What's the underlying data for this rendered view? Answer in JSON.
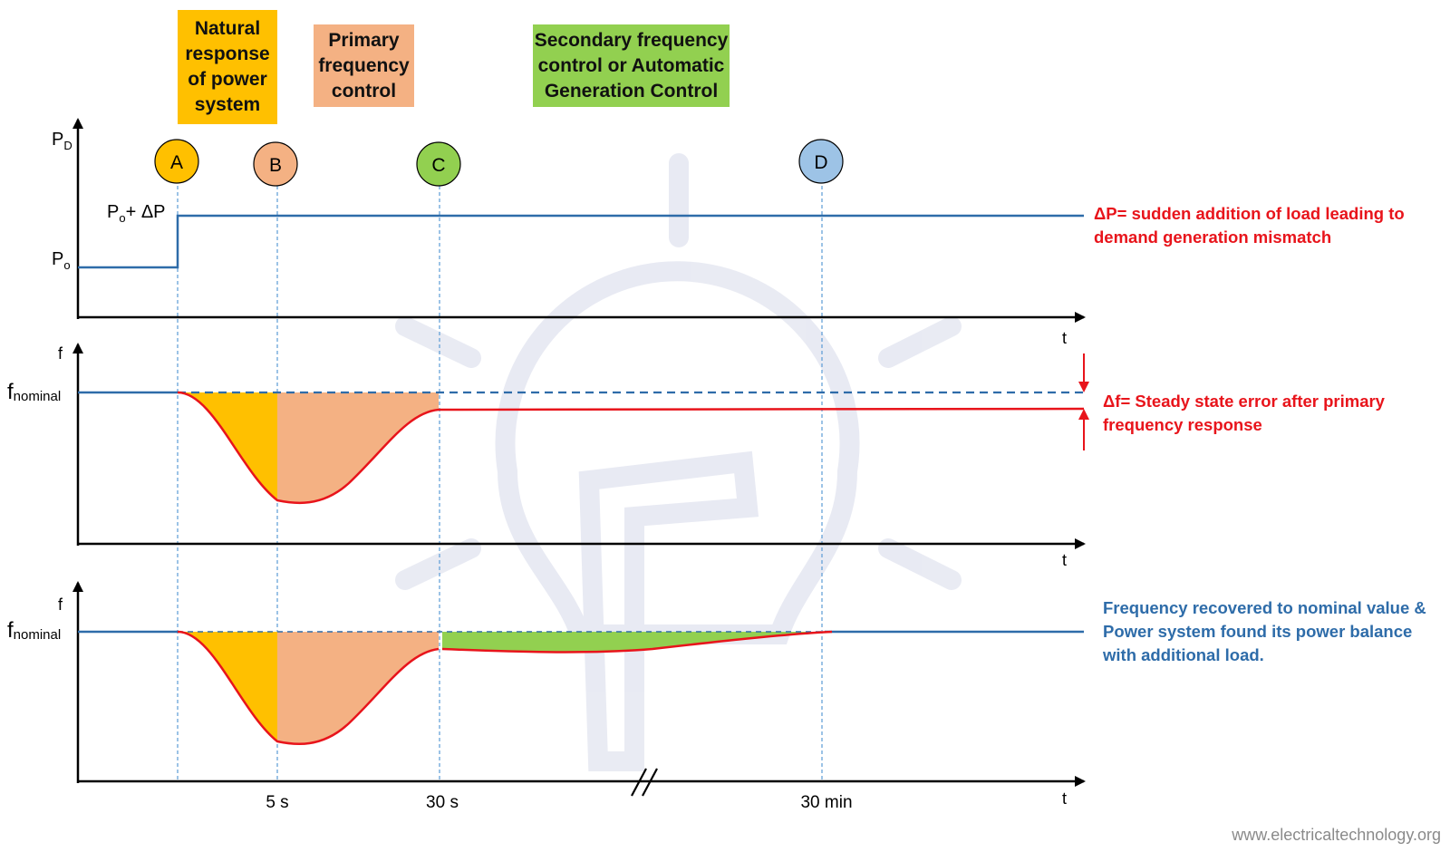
{
  "phases": {
    "natural": "Natural response of power system",
    "primary": "Primary frequency control",
    "secondary": "Secondary frequency control or Automatic Generation Control"
  },
  "points": [
    "A",
    "B",
    "C",
    "D"
  ],
  "power_axis": {
    "y_label_main": "P",
    "y_label_sub": "D",
    "p0_main": "P",
    "p0_sub": "o",
    "p1_main": "P",
    "p1_sub": "o",
    "p1_suffix": "+ ΔP",
    "x_label": "t"
  },
  "freq_axis_1": {
    "y_label": "f",
    "nominal_main": "f",
    "nominal_sub": "nominal",
    "x_label": "t"
  },
  "freq_axis_2": {
    "y_label": "f",
    "nominal_main": "f",
    "nominal_sub": "nominal",
    "x_label": "t"
  },
  "time_ticks": [
    "5 s",
    "30 s",
    "30 min"
  ],
  "annotations": {
    "delta_p": "ΔP= sudden addition of load leading to demand generation mismatch",
    "delta_f": "Δf= Steady state error after primary frequency response",
    "recovered": "Frequency recovered to nominal value & Power system found its power balance with additional load."
  },
  "watermark": "www.electricaltechnology.org",
  "colors": {
    "natural": "#ffc000",
    "primary": "#f4b183",
    "secondary": "#92d050",
    "point_d": "#9dc3e6",
    "power_line": "#2e6ca9",
    "freq_curve": "#e8141b",
    "guide": "#5b9bd5"
  }
}
